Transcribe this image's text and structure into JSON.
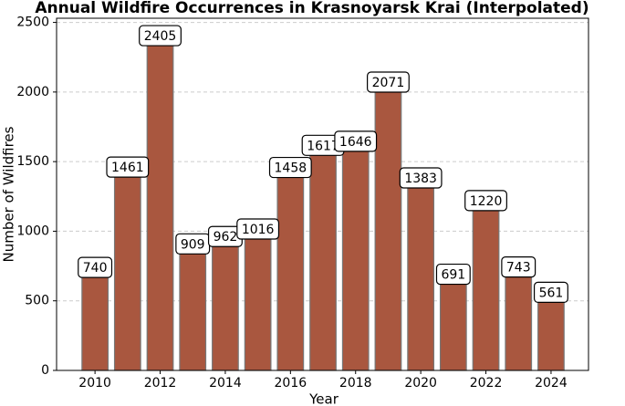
{
  "chart_data": {
    "type": "bar",
    "title": "Annual Wildfire Occurrences in Krasnoyarsk Krai (Interpolated)",
    "x_label": "Year",
    "y_label": "Number of Wildfires",
    "x": [
      2010,
      2011,
      2012,
      2013,
      2014,
      2015,
      2016,
      2017,
      2018,
      2019,
      2020,
      2021,
      2022,
      2023,
      2024
    ],
    "values": [
      740,
      1461,
      2405,
      909,
      962,
      1016,
      1458,
      1617,
      1646,
      2071,
      1383,
      691,
      1220,
      743,
      561
    ],
    "color": "#a9573f",
    "xlim": [
      2008.82,
      2025.15
    ],
    "xticks": [
      2010,
      2012,
      2014,
      2016,
      2018,
      2020,
      2022,
      2024
    ],
    "ylim": [
      0,
      2530
    ],
    "yticks": [
      0,
      500,
      1000,
      1500,
      2000,
      2500
    ],
    "grid": true
  }
}
